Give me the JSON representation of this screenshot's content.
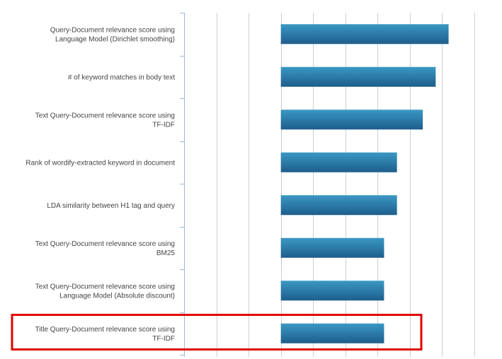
{
  "chart_data": {
    "type": "bar",
    "orientation": "horizontal",
    "title": "",
    "xlabel": "",
    "ylabel": "",
    "grid": true,
    "legend": "none",
    "colors": {
      "bar_top": "#3a98c4",
      "bar_bottom": "#1e5d8c",
      "grid": "#c9cfd6",
      "axis": "#9fb9d3",
      "highlight": "#e00000"
    },
    "xlim": [
      0,
      9
    ],
    "baseline": 3,
    "categories": [
      [
        "Query-Document relevance score using",
        "Language Model (Dirichlet smoothing)"
      ],
      [
        "# of keyword matches in body text"
      ],
      [
        "Text Query-Document relevance score using",
        "TF-IDF"
      ],
      [
        "Rank of wordify-extracted keyword in document"
      ],
      [
        "LDA similarity between H1 tag and query"
      ],
      [
        "Text Query-Document relevance score using",
        "BM25"
      ],
      [
        "Text Query-Document relevance score using",
        "Language Model (Absolute discount)"
      ],
      [
        "Title Query-Document relevance score using",
        "TF-IDF"
      ]
    ],
    "values": [
      8.2,
      7.8,
      7.4,
      6.6,
      6.6,
      6.2,
      6.2,
      6.2
    ],
    "highlighted_index": 7
  }
}
